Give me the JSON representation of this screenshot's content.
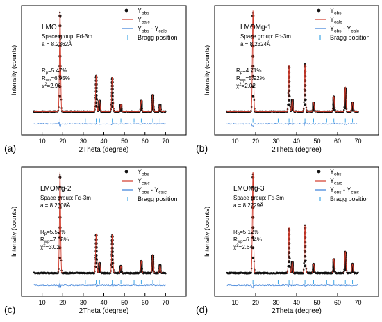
{
  "chart_data": [
    {
      "type": "line",
      "panel_label": "(a)",
      "sample": "LMO",
      "space_group": "Space group: Fd-3m",
      "lattice": "a = 8.2362Å",
      "stats": [
        {
          "sym": "R",
          "sub": "p",
          "val": "=5.47%"
        },
        {
          "sym": "R",
          "sub": "wp",
          "val": "=6.95%"
        },
        {
          "sym": "χ",
          "sup": "2",
          "val": "=2.96"
        }
      ],
      "xlabel": "2Theta (degree)",
      "ylabel": "Intensity (counts)",
      "xlim": [
        0,
        80
      ],
      "xticks": [
        "10",
        "20",
        "30",
        "40",
        "50",
        "60",
        "70"
      ],
      "peaks": [
        {
          "x": 18.7,
          "h": 1.0
        },
        {
          "x": 36.3,
          "h": 0.36
        },
        {
          "x": 37.9,
          "h": 0.11
        },
        {
          "x": 44.1,
          "h": 0.34
        },
        {
          "x": 48.3,
          "h": 0.07
        },
        {
          "x": 58.2,
          "h": 0.11
        },
        {
          "x": 63.8,
          "h": 0.17
        },
        {
          "x": 67.3,
          "h": 0.07
        }
      ],
      "bragg_positions": [
        18.7,
        31.0,
        36.3,
        37.9,
        44.1,
        48.3,
        54.7,
        58.2,
        63.8,
        67.3
      ],
      "legend": {
        "obs": "Y",
        "obs_sub": "obs",
        "calc": "Y",
        "calc_sub": "calc",
        "diff": "Y",
        "diff_sub": "obs",
        "diff_mid": " - Y",
        "diff_sub2": "calc",
        "bragg": "Bragg position"
      }
    },
    {
      "type": "line",
      "panel_label": "(b)",
      "sample": "LMOMg-1",
      "space_group": "Space group: Fd-3m",
      "lattice": "a = 8.2324Å",
      "stats": [
        {
          "sym": "R",
          "sub": "p",
          "val": "=4.71%"
        },
        {
          "sym": "R",
          "sub": "wp",
          "val": "=5.92%"
        },
        {
          "sym": "χ",
          "sup": "2",
          "val": "=2.02"
        }
      ],
      "xlabel": "2Theta (degree)",
      "ylabel": "Intensity (counts)",
      "xlim": [
        0,
        80
      ],
      "xticks": [
        "10",
        "20",
        "30",
        "40",
        "50",
        "60",
        "70"
      ],
      "peaks": [
        {
          "x": 18.7,
          "h": 1.0
        },
        {
          "x": 36.3,
          "h": 0.46
        },
        {
          "x": 37.9,
          "h": 0.12
        },
        {
          "x": 44.1,
          "h": 0.47
        },
        {
          "x": 48.3,
          "h": 0.09
        },
        {
          "x": 58.2,
          "h": 0.15
        },
        {
          "x": 63.8,
          "h": 0.24
        },
        {
          "x": 67.3,
          "h": 0.09
        }
      ],
      "bragg_positions": [
        18.7,
        31.0,
        36.3,
        37.9,
        44.1,
        48.3,
        54.7,
        58.2,
        63.8,
        67.3
      ],
      "legend": {
        "obs": "Y",
        "obs_sub": "obs",
        "calc": "Y",
        "calc_sub": "calc",
        "diff": "Y",
        "diff_sub": "obs",
        "diff_mid": " - Y",
        "diff_sub2": "calc",
        "bragg": "Bragg position"
      }
    },
    {
      "type": "line",
      "panel_label": "(c)",
      "sample": "LMOMg-2",
      "space_group": "Space group: Fd-3m",
      "lattice": "a = 8.2308Å",
      "stats": [
        {
          "sym": "R",
          "sub": "p",
          "val": "=5.52%"
        },
        {
          "sym": "R",
          "sub": "wp",
          "val": "=7.03%"
        },
        {
          "sym": "χ",
          "sup": "2",
          "val": "=3.02"
        }
      ],
      "xlabel": "2Theta (degree)",
      "ylabel": "Intensity (counts)",
      "xlim": [
        0,
        80
      ],
      "xticks": [
        "10",
        "20",
        "30",
        "40",
        "50",
        "60",
        "70"
      ],
      "peaks": [
        {
          "x": 18.7,
          "h": 1.0
        },
        {
          "x": 36.3,
          "h": 0.39
        },
        {
          "x": 37.9,
          "h": 0.1
        },
        {
          "x": 44.1,
          "h": 0.38
        },
        {
          "x": 48.3,
          "h": 0.07
        },
        {
          "x": 58.2,
          "h": 0.12
        },
        {
          "x": 63.8,
          "h": 0.18
        },
        {
          "x": 67.3,
          "h": 0.08
        }
      ],
      "bragg_positions": [
        18.7,
        31.0,
        36.3,
        37.9,
        44.1,
        48.3,
        54.7,
        58.2,
        63.8,
        67.3
      ],
      "legend": {
        "obs": "Y",
        "obs_sub": "obs",
        "calc": "Y",
        "calc_sub": "calc",
        "diff": "Y",
        "diff_sub": "obs",
        "diff_mid": " - Y",
        "diff_sub2": "calc",
        "bragg": "Bragg position"
      }
    },
    {
      "type": "line",
      "panel_label": "(d)",
      "sample": "LMOMg-3",
      "space_group": "Space group: Fd-3m",
      "lattice": "a = 8.2229Å",
      "stats": [
        {
          "sym": "R",
          "sub": "p",
          "val": "=5.12%"
        },
        {
          "sym": "R",
          "sub": "wp",
          "val": "=6.64%"
        },
        {
          "sym": "χ",
          "sup": "2",
          "val": "=2.64"
        }
      ],
      "xlabel": "2Theta (degree)",
      "ylabel": "Intensity (counts)",
      "xlim": [
        0,
        80
      ],
      "xticks": [
        "10",
        "20",
        "30",
        "40",
        "50",
        "60",
        "70"
      ],
      "peaks": [
        {
          "x": 18.7,
          "h": 1.0
        },
        {
          "x": 36.3,
          "h": 0.45
        },
        {
          "x": 37.9,
          "h": 0.11
        },
        {
          "x": 44.1,
          "h": 0.47
        },
        {
          "x": 48.3,
          "h": 0.09
        },
        {
          "x": 58.2,
          "h": 0.14
        },
        {
          "x": 63.8,
          "h": 0.21
        },
        {
          "x": 67.3,
          "h": 0.09
        }
      ],
      "bragg_positions": [
        18.7,
        31.0,
        36.3,
        37.9,
        44.1,
        48.3,
        54.7,
        58.2,
        63.8,
        67.3
      ],
      "legend": {
        "obs": "Y",
        "obs_sub": "obs",
        "calc": "Y",
        "calc_sub": "calc",
        "diff": "Y",
        "diff_sub": "obs",
        "diff_mid": " - Y",
        "diff_sub2": "calc",
        "bragg": "Bragg position"
      }
    }
  ],
  "colors": {
    "observed": "#111111",
    "calculated": "#d23a2a",
    "difference": "#3a7fd8",
    "bragg": "#3fa6e6",
    "axis": "#000000"
  }
}
